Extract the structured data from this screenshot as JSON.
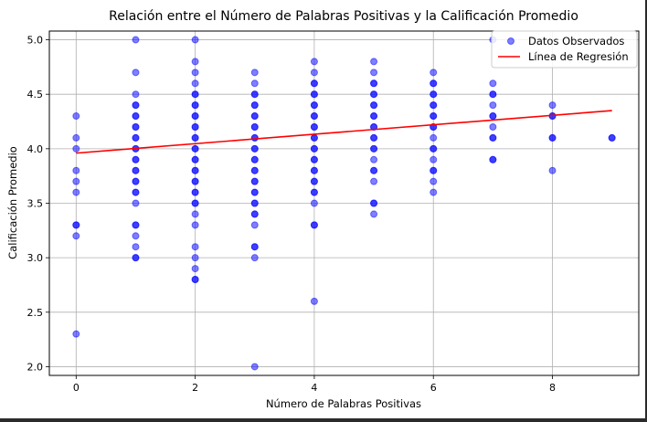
{
  "chart_data": {
    "type": "scatter",
    "title": "Relación entre el Número de Palabras Positivas y la Calificación Promedio",
    "xlabel": "Número de Palabras Positivas",
    "ylabel": "Calificación Promedio",
    "xlim": [
      -0.45,
      9.45
    ],
    "ylim": [
      1.92,
      5.08
    ],
    "xticks": [
      0,
      2,
      4,
      6,
      8
    ],
    "yticks": [
      2.0,
      2.5,
      3.0,
      3.5,
      4.0,
      4.5,
      5.0
    ],
    "grid": true,
    "legend_position": "top-right",
    "series": [
      {
        "name": "Datos Observados",
        "kind": "scatter",
        "color": "#0000ff",
        "points": [
          [
            0,
            4.3
          ],
          [
            0,
            4.1
          ],
          [
            0,
            4.0
          ],
          [
            0,
            3.8
          ],
          [
            0,
            3.7
          ],
          [
            0,
            3.6
          ],
          [
            0,
            3.3
          ],
          [
            0,
            3.3
          ],
          [
            0,
            3.2
          ],
          [
            0,
            2.3
          ],
          [
            1,
            5.0
          ],
          [
            1,
            4.7
          ],
          [
            1,
            4.5
          ],
          [
            1,
            4.4
          ],
          [
            1,
            4.4
          ],
          [
            1,
            4.3
          ],
          [
            1,
            4.3
          ],
          [
            1,
            4.2
          ],
          [
            1,
            4.2
          ],
          [
            1,
            4.1
          ],
          [
            1,
            4.1
          ],
          [
            1,
            4.0
          ],
          [
            1,
            4.0
          ],
          [
            1,
            3.9
          ],
          [
            1,
            3.9
          ],
          [
            1,
            3.8
          ],
          [
            1,
            3.8
          ],
          [
            1,
            3.7
          ],
          [
            1,
            3.7
          ],
          [
            1,
            3.6
          ],
          [
            1,
            3.6
          ],
          [
            1,
            3.5
          ],
          [
            1,
            3.3
          ],
          [
            1,
            3.3
          ],
          [
            1,
            3.2
          ],
          [
            1,
            3.1
          ],
          [
            1,
            3.0
          ],
          [
            1,
            3.0
          ],
          [
            2,
            5.0
          ],
          [
            2,
            4.8
          ],
          [
            2,
            4.7
          ],
          [
            2,
            4.6
          ],
          [
            2,
            4.5
          ],
          [
            2,
            4.5
          ],
          [
            2,
            4.4
          ],
          [
            2,
            4.4
          ],
          [
            2,
            4.3
          ],
          [
            2,
            4.3
          ],
          [
            2,
            4.2
          ],
          [
            2,
            4.2
          ],
          [
            2,
            4.1
          ],
          [
            2,
            4.1
          ],
          [
            2,
            4.0
          ],
          [
            2,
            4.0
          ],
          [
            2,
            3.9
          ],
          [
            2,
            3.9
          ],
          [
            2,
            3.8
          ],
          [
            2,
            3.8
          ],
          [
            2,
            3.7
          ],
          [
            2,
            3.7
          ],
          [
            2,
            3.6
          ],
          [
            2,
            3.6
          ],
          [
            2,
            3.5
          ],
          [
            2,
            3.5
          ],
          [
            2,
            3.4
          ],
          [
            2,
            3.3
          ],
          [
            2,
            3.1
          ],
          [
            2,
            3.0
          ],
          [
            2,
            2.9
          ],
          [
            2,
            2.8
          ],
          [
            2,
            2.8
          ],
          [
            3,
            4.7
          ],
          [
            3,
            4.6
          ],
          [
            3,
            4.5
          ],
          [
            3,
            4.5
          ],
          [
            3,
            4.4
          ],
          [
            3,
            4.4
          ],
          [
            3,
            4.3
          ],
          [
            3,
            4.3
          ],
          [
            3,
            4.2
          ],
          [
            3,
            4.2
          ],
          [
            3,
            4.1
          ],
          [
            3,
            4.1
          ],
          [
            3,
            4.0
          ],
          [
            3,
            4.0
          ],
          [
            3,
            3.9
          ],
          [
            3,
            3.9
          ],
          [
            3,
            3.8
          ],
          [
            3,
            3.8
          ],
          [
            3,
            3.7
          ],
          [
            3,
            3.7
          ],
          [
            3,
            3.6
          ],
          [
            3,
            3.6
          ],
          [
            3,
            3.5
          ],
          [
            3,
            3.5
          ],
          [
            3,
            3.4
          ],
          [
            3,
            3.4
          ],
          [
            3,
            3.3
          ],
          [
            3,
            3.1
          ],
          [
            3,
            3.1
          ],
          [
            3,
            3.0
          ],
          [
            3,
            2.0
          ],
          [
            4,
            4.8
          ],
          [
            4,
            4.7
          ],
          [
            4,
            4.6
          ],
          [
            4,
            4.6
          ],
          [
            4,
            4.5
          ],
          [
            4,
            4.5
          ],
          [
            4,
            4.4
          ],
          [
            4,
            4.4
          ],
          [
            4,
            4.3
          ],
          [
            4,
            4.3
          ],
          [
            4,
            4.2
          ],
          [
            4,
            4.2
          ],
          [
            4,
            4.1
          ],
          [
            4,
            4.1
          ],
          [
            4,
            4.0
          ],
          [
            4,
            4.0
          ],
          [
            4,
            3.9
          ],
          [
            4,
            3.9
          ],
          [
            4,
            3.8
          ],
          [
            4,
            3.8
          ],
          [
            4,
            3.7
          ],
          [
            4,
            3.7
          ],
          [
            4,
            3.6
          ],
          [
            4,
            3.6
          ],
          [
            4,
            3.5
          ],
          [
            4,
            3.3
          ],
          [
            4,
            3.3
          ],
          [
            4,
            2.6
          ],
          [
            5,
            4.8
          ],
          [
            5,
            4.7
          ],
          [
            5,
            4.6
          ],
          [
            5,
            4.6
          ],
          [
            5,
            4.5
          ],
          [
            5,
            4.5
          ],
          [
            5,
            4.4
          ],
          [
            5,
            4.4
          ],
          [
            5,
            4.3
          ],
          [
            5,
            4.3
          ],
          [
            5,
            4.2
          ],
          [
            5,
            4.2
          ],
          [
            5,
            4.1
          ],
          [
            5,
            4.1
          ],
          [
            5,
            4.0
          ],
          [
            5,
            4.0
          ],
          [
            5,
            3.9
          ],
          [
            5,
            3.8
          ],
          [
            5,
            3.8
          ],
          [
            5,
            3.7
          ],
          [
            5,
            3.5
          ],
          [
            5,
            3.5
          ],
          [
            5,
            3.4
          ],
          [
            6,
            4.7
          ],
          [
            6,
            4.6
          ],
          [
            6,
            4.6
          ],
          [
            6,
            4.5
          ],
          [
            6,
            4.5
          ],
          [
            6,
            4.4
          ],
          [
            6,
            4.4
          ],
          [
            6,
            4.3
          ],
          [
            6,
            4.3
          ],
          [
            6,
            4.2
          ],
          [
            6,
            4.2
          ],
          [
            6,
            4.1
          ],
          [
            6,
            4.0
          ],
          [
            6,
            4.0
          ],
          [
            6,
            3.9
          ],
          [
            6,
            3.8
          ],
          [
            6,
            3.8
          ],
          [
            6,
            3.7
          ],
          [
            6,
            3.6
          ],
          [
            7,
            5.0
          ],
          [
            7,
            4.6
          ],
          [
            7,
            4.5
          ],
          [
            7,
            4.5
          ],
          [
            7,
            4.4
          ],
          [
            7,
            4.3
          ],
          [
            7,
            4.3
          ],
          [
            7,
            4.2
          ],
          [
            7,
            4.1
          ],
          [
            7,
            4.1
          ],
          [
            7,
            3.9
          ],
          [
            7,
            3.9
          ],
          [
            8,
            4.4
          ],
          [
            8,
            4.3
          ],
          [
            8,
            4.3
          ],
          [
            8,
            4.1
          ],
          [
            8,
            4.1
          ],
          [
            8,
            3.8
          ],
          [
            9,
            4.1
          ],
          [
            9,
            4.1
          ]
        ]
      },
      {
        "name": "Línea de Regresión",
        "kind": "line",
        "color": "#ff0000",
        "x": [
          0,
          9
        ],
        "y": [
          3.96,
          4.35
        ]
      }
    ]
  }
}
